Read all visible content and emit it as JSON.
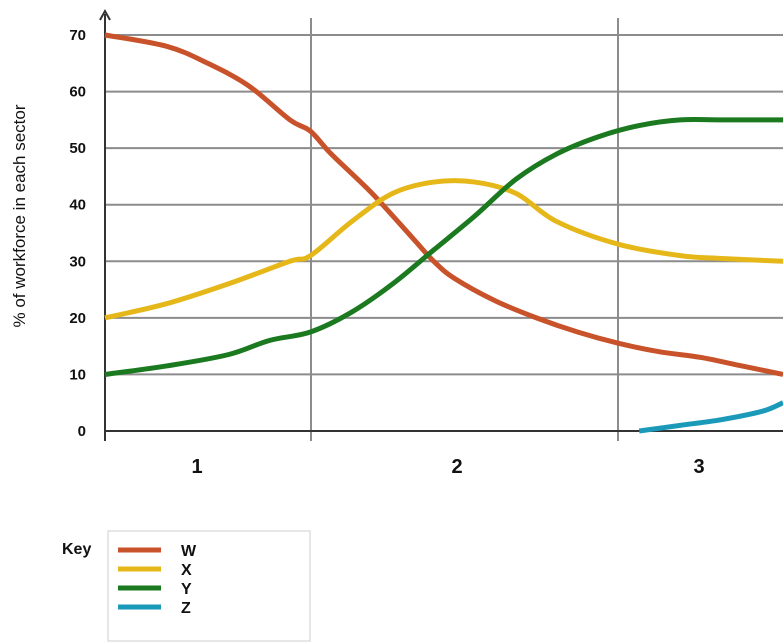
{
  "chart_data": {
    "type": "line",
    "title": "",
    "xlabel": "",
    "ylabel": "% of workforce in each sector",
    "x_ticks": [
      "1",
      "2",
      "3"
    ],
    "xlim": [
      0,
      3.3
    ],
    "ylim": [
      0,
      70
    ],
    "y_ticks": [
      0,
      10,
      20,
      30,
      40,
      50,
      60,
      70
    ],
    "grid": true,
    "legend_title": "Key",
    "legend_position": "bottom-left",
    "series": [
      {
        "name": "W",
        "color": "#c8522a",
        "points": [
          [
            0.0,
            70
          ],
          [
            0.3,
            68
          ],
          [
            0.5,
            65
          ],
          [
            0.7,
            61
          ],
          [
            0.9,
            55
          ],
          [
            1.0,
            53
          ],
          [
            1.1,
            49
          ],
          [
            1.3,
            42
          ],
          [
            1.5,
            34
          ],
          [
            1.6,
            30
          ],
          [
            1.7,
            27
          ],
          [
            1.9,
            23
          ],
          [
            2.1,
            20
          ],
          [
            2.3,
            17.5
          ],
          [
            2.5,
            15.5
          ],
          [
            2.7,
            14
          ],
          [
            2.9,
            13
          ],
          [
            3.1,
            11.5
          ],
          [
            3.3,
            10
          ]
        ]
      },
      {
        "name": "X",
        "color": "#e6b719",
        "points": [
          [
            0.0,
            20
          ],
          [
            0.3,
            22.5
          ],
          [
            0.6,
            26
          ],
          [
            0.9,
            30
          ],
          [
            1.0,
            31
          ],
          [
            1.2,
            37
          ],
          [
            1.4,
            42
          ],
          [
            1.6,
            44
          ],
          [
            1.8,
            44
          ],
          [
            2.0,
            42
          ],
          [
            2.2,
            37
          ],
          [
            2.5,
            33
          ],
          [
            2.8,
            31
          ],
          [
            3.0,
            30.5
          ],
          [
            3.3,
            30
          ]
        ]
      },
      {
        "name": "Y",
        "color": "#1b7a1f",
        "points": [
          [
            0.0,
            10
          ],
          [
            0.3,
            11.5
          ],
          [
            0.6,
            13.5
          ],
          [
            0.8,
            16
          ],
          [
            1.0,
            17.5
          ],
          [
            1.2,
            21
          ],
          [
            1.4,
            26
          ],
          [
            1.6,
            32
          ],
          [
            1.8,
            38
          ],
          [
            2.0,
            44.5
          ],
          [
            2.2,
            49
          ],
          [
            2.4,
            52
          ],
          [
            2.6,
            54
          ],
          [
            2.8,
            55
          ],
          [
            3.0,
            55
          ],
          [
            3.3,
            55
          ]
        ]
      },
      {
        "name": "Z",
        "color": "#1a9ab8",
        "points": [
          [
            2.6,
            0
          ],
          [
            2.8,
            1
          ],
          [
            3.0,
            2
          ],
          [
            3.2,
            3.5
          ],
          [
            3.3,
            5
          ]
        ]
      }
    ]
  }
}
